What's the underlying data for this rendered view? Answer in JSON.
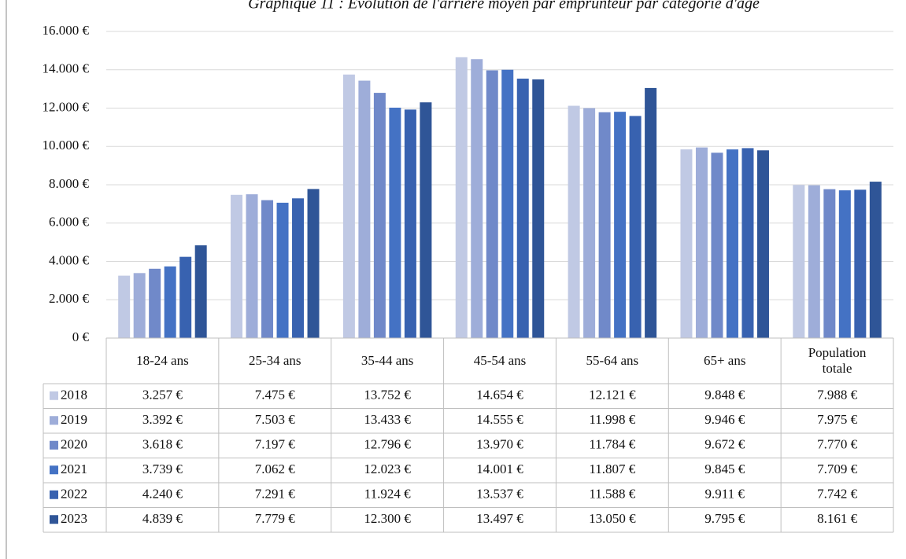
{
  "chart_data": {
    "type": "bar",
    "title": "Graphique 11 : Évolution de l'arriéré moyen par emprunteur par catégorie d'âge",
    "categories": [
      "18-24 ans",
      "25-34 ans",
      "35-44 ans",
      "45-54 ans",
      "55-64 ans",
      "65+ ans",
      "Population totale"
    ],
    "ylim": [
      0,
      16000
    ],
    "yticks": [
      {
        "value": 0,
        "label": "0 €"
      },
      {
        "value": 2000,
        "label": "2.000 €"
      },
      {
        "value": 4000,
        "label": "4.000 €"
      },
      {
        "value": 6000,
        "label": "6.000 €"
      },
      {
        "value": 8000,
        "label": "8.000 €"
      },
      {
        "value": 10000,
        "label": "10.000 €"
      },
      {
        "value": 12000,
        "label": "12.000 €"
      },
      {
        "value": 14000,
        "label": "14.000 €"
      },
      {
        "value": 16000,
        "label": "16.000 €"
      }
    ],
    "grid": true,
    "series": [
      {
        "name": "2018",
        "color": "#c0c9e4",
        "values": [
          3257,
          7475,
          13752,
          14654,
          12121,
          9848,
          7988
        ],
        "value_labels": [
          "3.257 €",
          "7.475 €",
          "13.752 €",
          "14.654 €",
          "12.121 €",
          "9.848 €",
          "7.988 €"
        ]
      },
      {
        "name": "2019",
        "color": "#9eadd9",
        "values": [
          3392,
          7503,
          13433,
          14555,
          11998,
          9946,
          7975
        ],
        "value_labels": [
          "3.392 €",
          "7.503 €",
          "13.433 €",
          "14.555 €",
          "11.998 €",
          "9.946 €",
          "7.975 €"
        ]
      },
      {
        "name": "2020",
        "color": "#7089c9",
        "values": [
          3618,
          7197,
          12796,
          13970,
          11784,
          9672,
          7770
        ],
        "value_labels": [
          "3.618 €",
          "7.197 €",
          "12.796 €",
          "13.970 €",
          "11.784 €",
          "9.672 €",
          "7.770 €"
        ]
      },
      {
        "name": "2021",
        "color": "#4472c4",
        "values": [
          3739,
          7062,
          12023,
          14001,
          11807,
          9845,
          7709
        ],
        "value_labels": [
          "3.739 €",
          "7.062 €",
          "12.023 €",
          "14.001 €",
          "11.807 €",
          "9.845 €",
          "7.709 €"
        ]
      },
      {
        "name": "2022",
        "color": "#3862b0",
        "values": [
          4240,
          7291,
          11924,
          13537,
          11588,
          9911,
          7742
        ],
        "value_labels": [
          "4.240 €",
          "7.291 €",
          "11.924 €",
          "13.537 €",
          "11.588 €",
          "9.911 €",
          "7.742 €"
        ]
      },
      {
        "name": "2023",
        "color": "#2f5597",
        "values": [
          4839,
          7779,
          12300,
          13497,
          13050,
          9795,
          8161
        ],
        "value_labels": [
          "4.839 €",
          "7.779 €",
          "12.300 €",
          "13.497 €",
          "13.050 €",
          "9.795 €",
          "8.161 €"
        ]
      }
    ]
  }
}
